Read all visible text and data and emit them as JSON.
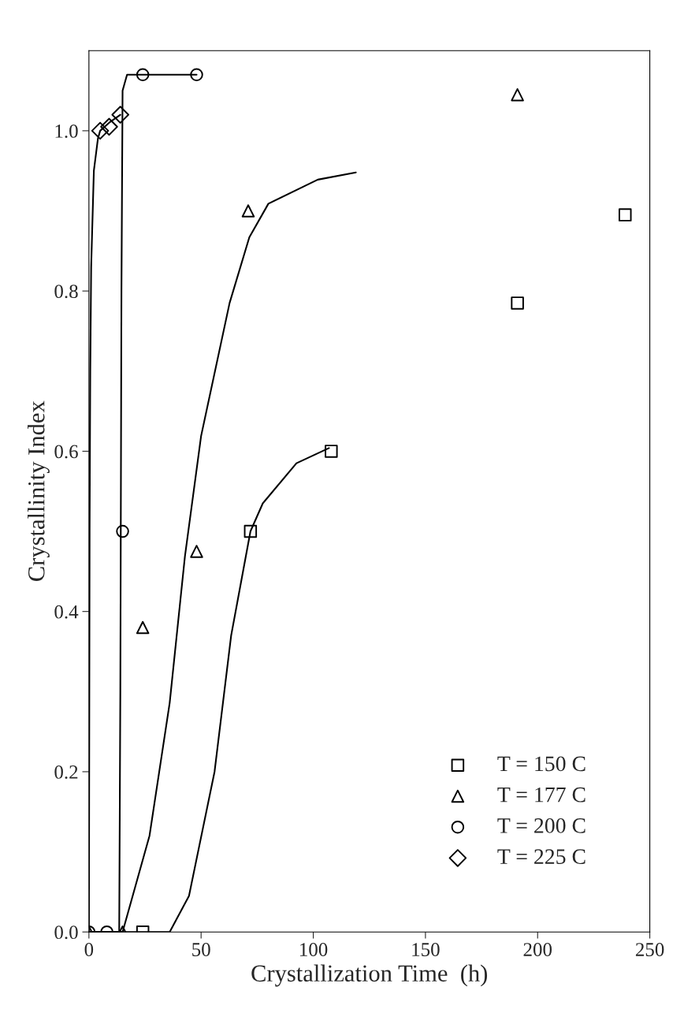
{
  "chart_data": {
    "type": "scatter",
    "xlabel": "Crystallization Time  (h)",
    "ylabel": "Crystallinity Index",
    "xlim": [
      0,
      250
    ],
    "xticks": [
      0,
      50,
      100,
      150,
      200,
      250
    ],
    "ylim": [
      0,
      1.1
    ],
    "yticks": [
      {
        "value": 0,
        "label": "0.0"
      },
      {
        "value": 0.2,
        "label": "0.2"
      },
      {
        "value": 0.4,
        "label": "0.4"
      },
      {
        "value": 0.6,
        "label": "0.6"
      },
      {
        "value": 0.8,
        "label": "0.8"
      },
      {
        "value": 1.0,
        "label": "1.0"
      }
    ],
    "grid": false,
    "legend": "bottom right",
    "series": [
      {
        "name": "T = 150 C",
        "marker": "square",
        "color": "#000000",
        "x": [
          24,
          72,
          108,
          191,
          239
        ],
        "values": [
          0,
          0.5,
          0.6,
          0.785,
          0.895
        ]
      },
      {
        "name": "T = 177 C",
        "marker": "triangle",
        "color": "#000000",
        "x": [
          0,
          15,
          24,
          48,
          71,
          191
        ],
        "values": [
          0,
          0,
          0.38,
          0.475,
          0.9,
          1.045
        ]
      },
      {
        "name": "T = 200 C",
        "marker": "circle",
        "color": "#000000",
        "x": [
          0,
          8,
          15,
          24,
          48
        ],
        "values": [
          0,
          0,
          0.5,
          1.07,
          1.07
        ]
      },
      {
        "name": "T = 225 C",
        "marker": "diamond",
        "color": "#000000",
        "x": [
          5,
          9,
          14
        ],
        "values": [
          1.0,
          1.005,
          1.02
        ]
      },
      {
        "type": "line",
        "marker": "none",
        "line_style": "solid",
        "color": "#000000",
        "x": [
          0,
          36,
          44.6,
          56,
          63.4,
          72,
          77.5,
          92.5,
          107
        ],
        "values": [
          0,
          0,
          0.045,
          0.2,
          0.37,
          0.5,
          0.535,
          0.585,
          0.604
        ]
      },
      {
        "type": "line",
        "marker": "none",
        "line_style": "solid",
        "color": "#000000",
        "x": [
          0,
          15,
          27,
          36,
          42.8,
          50,
          62.7,
          71.5,
          80,
          102,
          119
        ],
        "values": [
          0,
          0,
          0.12,
          0.286,
          0.469,
          0.619,
          0.785,
          0.867,
          0.909,
          0.939,
          0.948
        ]
      },
      {
        "type": "line",
        "marker": "none",
        "line_style": "solid",
        "color": "#000000",
        "x": [
          0,
          13.5,
          14,
          14.5,
          15,
          17,
          48
        ],
        "values": [
          0,
          0,
          0.3,
          0.8,
          1.05,
          1.07,
          1.07
        ]
      },
      {
        "type": "line",
        "marker": "none",
        "line_style": "solid",
        "color": "#000000",
        "x": [
          0,
          0.3,
          0.6,
          1,
          2.2,
          4,
          5,
          9,
          14
        ],
        "values": [
          0,
          0.5,
          0.7,
          0.83,
          0.95,
          0.99,
          1.0,
          1.01,
          1.02
        ]
      }
    ]
  }
}
